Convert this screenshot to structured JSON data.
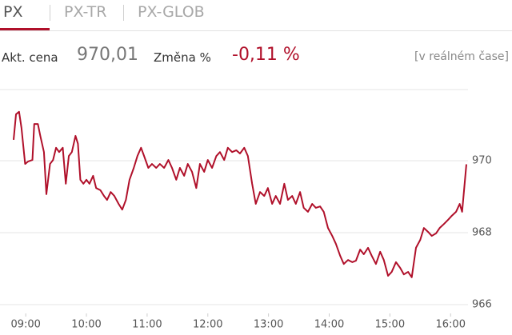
{
  "tabs": [
    "PX",
    "PX-TR",
    "PX-GLOB"
  ],
  "quote": {
    "price_label": "Akt. cena",
    "price": "970,01",
    "change_label": "Změna %",
    "change": "-0,11 %",
    "realtime": "[v reálném čase]"
  },
  "chart_data": {
    "type": "line",
    "color": "#b0102a",
    "grid": true,
    "xlim": [
      8.8,
      16.3
    ],
    "ylim": [
      965.7,
      971.8
    ],
    "xticks": [
      {
        "value": 9,
        "label": "09:00"
      },
      {
        "value": 10,
        "label": "10:00"
      },
      {
        "value": 11,
        "label": "11:00"
      },
      {
        "value": 12,
        "label": "12:00"
      },
      {
        "value": 13,
        "label": "13:00"
      },
      {
        "value": 14,
        "label": "14:00"
      },
      {
        "value": 15,
        "label": "15:00"
      },
      {
        "value": 16,
        "label": "16:00"
      }
    ],
    "yticks": [
      966,
      968,
      970
    ],
    "x": [
      8.8,
      8.84,
      8.89,
      8.93,
      8.99,
      9.04,
      9.11,
      9.14,
      9.2,
      9.24,
      9.3,
      9.34,
      9.4,
      9.45,
      9.5,
      9.55,
      9.61,
      9.66,
      9.71,
      9.76,
      9.82,
      9.86,
      9.9,
      9.95,
      10.0,
      10.05,
      10.11,
      10.16,
      10.23,
      10.29,
      10.34,
      10.4,
      10.46,
      10.53,
      10.59,
      10.65,
      10.71,
      10.78,
      10.84,
      10.9,
      10.95,
      11.02,
      11.08,
      11.15,
      11.21,
      11.28,
      11.35,
      11.41,
      11.48,
      11.54,
      11.61,
      11.67,
      11.74,
      11.81,
      11.87,
      11.94,
      12.0,
      12.07,
      12.14,
      12.2,
      12.27,
      12.33,
      12.4,
      12.47,
      12.53,
      12.6,
      12.66,
      12.73,
      12.79,
      12.86,
      12.93,
      12.99,
      13.06,
      13.12,
      13.19,
      13.26,
      13.32,
      13.39,
      13.45,
      13.52,
      13.58,
      13.65,
      13.72,
      13.78,
      13.85,
      13.91,
      13.98,
      14.05,
      14.11,
      14.18,
      14.24,
      14.31,
      14.38,
      14.44,
      14.51,
      14.57,
      14.64,
      14.7,
      14.77,
      14.84,
      14.9,
      14.97,
      15.03,
      15.1,
      15.17,
      15.23,
      15.3,
      15.36,
      15.43,
      15.5,
      15.56,
      15.63,
      15.69,
      15.76,
      15.82,
      15.89,
      15.96,
      16.02,
      16.09,
      16.15,
      16.19,
      16.26
    ],
    "series": [
      {
        "name": "PX",
        "color": "#b0102a",
        "values": [
          970.58,
          971.29,
          971.36,
          970.91,
          969.91,
          969.98,
          970.02,
          971.02,
          971.02,
          970.69,
          970.24,
          969.07,
          969.91,
          970.02,
          970.36,
          970.24,
          970.36,
          969.36,
          970.13,
          970.24,
          970.69,
          970.47,
          969.47,
          969.36,
          969.47,
          969.36,
          969.58,
          969.24,
          969.18,
          969.02,
          968.91,
          969.13,
          969.02,
          968.8,
          968.64,
          968.91,
          969.47,
          969.8,
          970.13,
          970.36,
          970.13,
          969.8,
          969.91,
          969.8,
          969.91,
          969.8,
          970.02,
          969.8,
          969.47,
          969.8,
          969.58,
          969.91,
          969.69,
          969.24,
          969.91,
          969.69,
          970.02,
          969.8,
          970.13,
          970.24,
          970.02,
          970.36,
          970.24,
          970.29,
          970.2,
          970.36,
          970.13,
          969.36,
          968.8,
          969.13,
          969.02,
          969.24,
          968.8,
          969.02,
          968.8,
          969.36,
          968.91,
          969.02,
          968.8,
          969.13,
          968.69,
          968.58,
          968.8,
          968.69,
          968.73,
          968.58,
          968.13,
          967.91,
          967.69,
          967.36,
          967.13,
          967.24,
          967.18,
          967.22,
          967.53,
          967.4,
          967.58,
          967.36,
          967.13,
          967.47,
          967.24,
          966.8,
          966.91,
          967.18,
          967.02,
          966.84,
          966.91,
          966.76,
          967.58,
          967.8,
          968.13,
          968.02,
          967.91,
          967.98,
          968.13,
          968.24,
          968.36,
          968.47,
          968.58,
          968.8,
          968.58,
          969.9
        ]
      }
    ]
  }
}
